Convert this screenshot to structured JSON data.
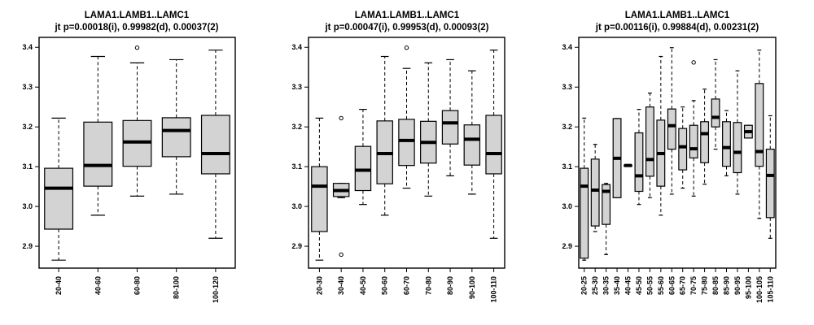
{
  "chart_data": [
    {
      "type": "box",
      "title": "LAMA1.LAMB1..LAMC1",
      "subtitle": "jt p=0.00018(i), 0.99982(d), 0.00037(2)",
      "ylim": [
        2.845,
        3.425
      ],
      "yticks": [
        "2.9",
        "3.0",
        "3.1",
        "3.2",
        "3.3",
        "3.4"
      ],
      "categories": [
        "20-40",
        "40-60",
        "60-80",
        "80-100",
        "100-120"
      ],
      "boxes": [
        {
          "lo": 2.865,
          "q1": 2.943,
          "med": 3.046,
          "q3": 3.096,
          "hi": 3.222,
          "out": []
        },
        {
          "lo": 2.978,
          "q1": 3.051,
          "med": 3.103,
          "q3": 3.212,
          "hi": 3.377,
          "out": []
        },
        {
          "lo": 3.026,
          "q1": 3.101,
          "med": 3.162,
          "q3": 3.216,
          "hi": 3.361,
          "out": [
            3.399
          ]
        },
        {
          "lo": 3.031,
          "q1": 3.125,
          "med": 3.191,
          "q3": 3.223,
          "hi": 3.369,
          "out": []
        },
        {
          "lo": 2.92,
          "q1": 3.082,
          "med": 3.133,
          "q3": 3.229,
          "hi": 3.393,
          "out": []
        }
      ]
    },
    {
      "type": "box",
      "title": "LAMA1.LAMB1..LAMC1",
      "subtitle": "jt p=0.00047(i), 0.99953(d), 0.00093(2)",
      "ylim": [
        2.845,
        3.425
      ],
      "yticks": [
        "2.9",
        "3.0",
        "3.1",
        "3.2",
        "3.3",
        "3.4"
      ],
      "categories": [
        "20-30",
        "30-40",
        "40-50",
        "50-60",
        "60-70",
        "70-80",
        "80-90",
        "90-100",
        "100-110"
      ],
      "boxes": [
        {
          "lo": 2.865,
          "q1": 2.937,
          "med": 3.051,
          "q3": 3.1,
          "hi": 3.222,
          "out": []
        },
        {
          "lo": 3.022,
          "q1": 3.025,
          "med": 3.04,
          "q3": 3.058,
          "hi": 3.058,
          "out": [
            3.222,
            2.879
          ]
        },
        {
          "lo": 3.005,
          "q1": 3.04,
          "med": 3.091,
          "q3": 3.151,
          "hi": 3.244,
          "out": []
        },
        {
          "lo": 2.978,
          "q1": 3.057,
          "med": 3.133,
          "q3": 3.215,
          "hi": 3.377,
          "out": []
        },
        {
          "lo": 3.046,
          "q1": 3.103,
          "med": 3.166,
          "q3": 3.219,
          "hi": 3.347,
          "out": [
            3.399
          ]
        },
        {
          "lo": 3.026,
          "q1": 3.109,
          "med": 3.161,
          "q3": 3.214,
          "hi": 3.361,
          "out": []
        },
        {
          "lo": 3.077,
          "q1": 3.157,
          "med": 3.21,
          "q3": 3.241,
          "hi": 3.369,
          "out": []
        },
        {
          "lo": 3.031,
          "q1": 3.104,
          "med": 3.169,
          "q3": 3.205,
          "hi": 3.341,
          "out": []
        },
        {
          "lo": 2.92,
          "q1": 3.082,
          "med": 3.133,
          "q3": 3.229,
          "hi": 3.393,
          "out": []
        }
      ]
    },
    {
      "type": "box",
      "title": "LAMA1.LAMB1..LAMC1",
      "subtitle": "jt p=0.00116(i), 0.99884(d), 0.00231(2)",
      "ylim": [
        2.845,
        3.425
      ],
      "yticks": [
        "2.9",
        "3.0",
        "3.1",
        "3.2",
        "3.3",
        "3.4"
      ],
      "categories": [
        "20-25",
        "25-30",
        "30-35",
        "35-40",
        "40-45",
        "45-50",
        "50-55",
        "55-60",
        "60-65",
        "65-70",
        "70-75",
        "75-80",
        "80-85",
        "85-90",
        "90-95",
        "95-100",
        "100-105",
        "105-110"
      ],
      "boxes": [
        {
          "lo": 2.865,
          "q1": 2.87,
          "med": 3.051,
          "q3": 3.096,
          "hi": 3.222,
          "out": []
        },
        {
          "lo": 2.937,
          "q1": 2.951,
          "med": 3.041,
          "q3": 3.119,
          "hi": 3.156,
          "out": []
        },
        {
          "lo": 2.879,
          "q1": 2.955,
          "med": 3.038,
          "q3": 3.055,
          "hi": 3.058,
          "out": []
        },
        {
          "lo": 3.022,
          "q1": 3.022,
          "med": 3.121,
          "q3": 3.221,
          "hi": 3.221,
          "out": []
        },
        {
          "lo": 3.103,
          "q1": 3.103,
          "med": 3.103,
          "q3": 3.103,
          "hi": 3.103,
          "out": []
        },
        {
          "lo": 3.005,
          "q1": 3.038,
          "med": 3.077,
          "q3": 3.185,
          "hi": 3.244,
          "out": []
        },
        {
          "lo": 3.022,
          "q1": 3.076,
          "med": 3.118,
          "q3": 3.25,
          "hi": 3.285,
          "out": []
        },
        {
          "lo": 2.978,
          "q1": 3.051,
          "med": 3.133,
          "q3": 3.217,
          "hi": 3.377,
          "out": []
        },
        {
          "lo": 3.031,
          "q1": 3.144,
          "med": 3.203,
          "q3": 3.245,
          "hi": 3.399,
          "out": []
        },
        {
          "lo": 3.046,
          "q1": 3.092,
          "med": 3.15,
          "q3": 3.196,
          "hi": 3.25,
          "out": []
        },
        {
          "lo": 3.026,
          "q1": 3.122,
          "med": 3.145,
          "q3": 3.204,
          "hi": 3.266,
          "out": [
            3.362
          ]
        },
        {
          "lo": 3.056,
          "q1": 3.11,
          "med": 3.183,
          "q3": 3.213,
          "hi": 3.295,
          "out": []
        },
        {
          "lo": 3.144,
          "q1": 3.2,
          "med": 3.224,
          "q3": 3.27,
          "hi": 3.369,
          "out": []
        },
        {
          "lo": 3.077,
          "q1": 3.101,
          "med": 3.148,
          "q3": 3.213,
          "hi": 3.241,
          "out": []
        },
        {
          "lo": 3.031,
          "q1": 3.085,
          "med": 3.136,
          "q3": 3.211,
          "hi": 3.341,
          "out": []
        },
        {
          "lo": 3.172,
          "q1": 3.172,
          "med": 3.188,
          "q3": 3.204,
          "hi": 3.204,
          "out": []
        },
        {
          "lo": 2.97,
          "q1": 3.101,
          "med": 3.138,
          "q3": 3.309,
          "hi": 3.393,
          "out": []
        },
        {
          "lo": 2.92,
          "q1": 2.972,
          "med": 3.078,
          "q3": 3.144,
          "hi": 3.228,
          "out": []
        }
      ]
    }
  ],
  "colors": {
    "box_fill": "#d3d3d3",
    "line": "#000000",
    "background": "#ffffff"
  }
}
